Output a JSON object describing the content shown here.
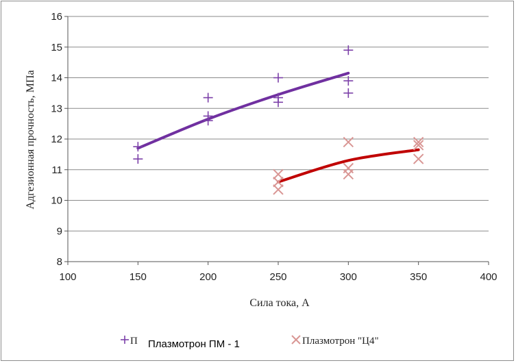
{
  "chart_data": {
    "type": "scatter",
    "xlabel": "Сила тока, А",
    "ylabel": "Адгезионная прочность, МПа",
    "xlim": [
      100,
      400
    ],
    "ylim": [
      8,
      16
    ],
    "xticks": [
      "100",
      "150",
      "200",
      "250",
      "300",
      "350",
      "400"
    ],
    "yticks": [
      "8",
      "9",
      "10",
      "11",
      "12",
      "13",
      "14",
      "15",
      "16"
    ],
    "grid": "horizontal",
    "legend_position": "bottom",
    "series": [
      {
        "name": "Плазмотрон ПМ - 1",
        "legend_fragment": "П",
        "marker": "plus",
        "color": "#7b3fa8",
        "points": [
          [
            150,
            11.75
          ],
          [
            150,
            11.35
          ],
          [
            200,
            13.35
          ],
          [
            200,
            12.75
          ],
          [
            200,
            12.6
          ],
          [
            250,
            14.0
          ],
          [
            250,
            13.35
          ],
          [
            250,
            13.2
          ],
          [
            300,
            14.9
          ],
          [
            300,
            13.9
          ],
          [
            300,
            13.5
          ]
        ],
        "trend": [
          [
            150,
            11.7
          ],
          [
            200,
            12.65
          ],
          [
            250,
            13.45
          ],
          [
            300,
            14.15
          ]
        ]
      },
      {
        "name": "Плазмотрон \"Ц4\"",
        "legend_fragment": "Плазмотрон \"Ц4\"",
        "marker": "x",
        "color": "#c0504d",
        "points": [
          [
            250,
            10.85
          ],
          [
            250,
            10.6
          ],
          [
            250,
            10.35
          ],
          [
            300,
            11.9
          ],
          [
            300,
            11.05
          ],
          [
            300,
            10.85
          ],
          [
            350,
            11.9
          ],
          [
            350,
            11.8
          ],
          [
            350,
            11.35
          ]
        ],
        "trend": [
          [
            250,
            10.6
          ],
          [
            300,
            11.3
          ],
          [
            350,
            11.65
          ]
        ]
      }
    ],
    "colors": {
      "series1_line": "#7030a0",
      "series2_line": "#c00000",
      "series2_marker": "#d99694",
      "grid": "#8a8a8a"
    }
  }
}
